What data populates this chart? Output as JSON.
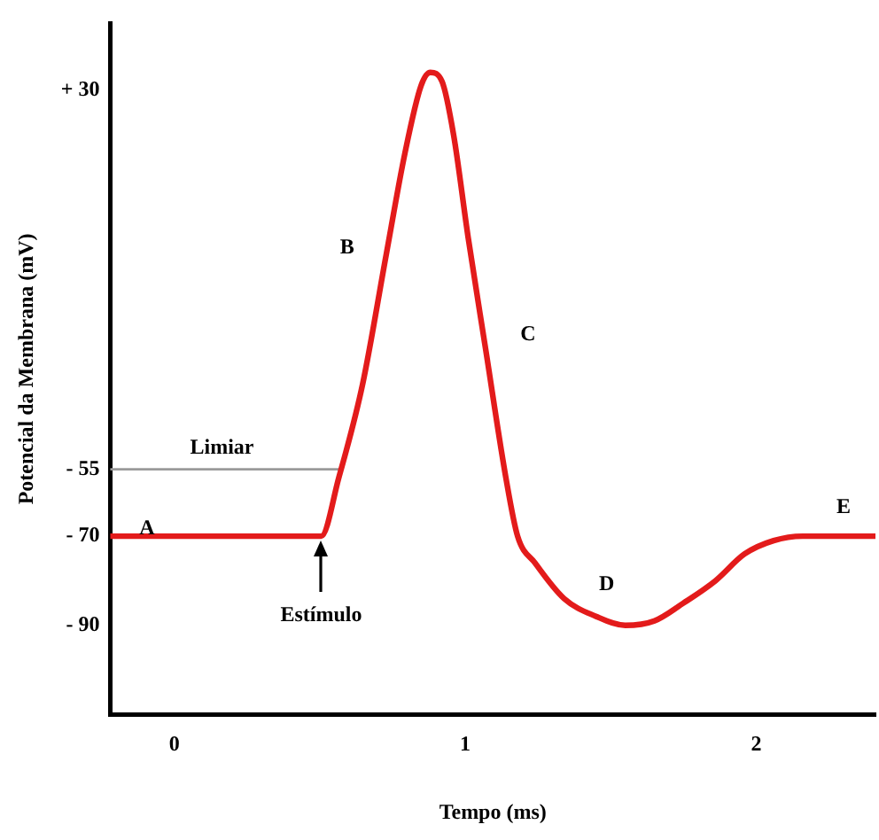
{
  "chart_data": {
    "type": "line",
    "xlabel": "Tempo (ms)",
    "ylabel": "Potencial da Membrana (mV)",
    "x": [
      -0.22,
      0.505,
      0.565,
      0.647,
      0.728,
      0.793,
      0.848,
      0.88,
      0.92,
      0.96,
      1.01,
      1.07,
      1.14,
      1.18,
      1.24,
      1.34,
      1.45,
      1.55,
      1.65,
      1.75,
      1.86,
      1.96,
      2.06,
      2.16,
      2.41
    ],
    "series": [
      {
        "color": "#e31b1b",
        "values": [
          -70,
          -70,
          -57,
          -36,
          -7,
          16,
          31,
          34,
          32,
          20,
          -3,
          -28,
          -57,
          -70,
          -76,
          -84,
          -88,
          -90,
          -89,
          -85,
          -80,
          -74,
          -71,
          -70,
          -70
        ]
      }
    ],
    "xlim": [
      -0.22,
      2.41
    ],
    "xticks": [
      0,
      1,
      2
    ],
    "ylim": [
      -110,
      45
    ],
    "yticks": [
      {
        "value": 30,
        "label": "+ 30"
      },
      {
        "value": -55,
        "label": "- 55"
      },
      {
        "value": -70,
        "label": "- 70"
      },
      {
        "value": -90,
        "label": "- 90"
      }
    ],
    "ref_lines": [
      {
        "axis": "y",
        "value": -55,
        "label": "Limiar",
        "color": "#9a9a9a"
      }
    ],
    "annotations": [
      {
        "text": "A",
        "x": 0.04,
        "y": -70
      },
      {
        "text": "B",
        "x": 0.728,
        "y": -7
      },
      {
        "text": "C",
        "x": 1.07,
        "y": -28
      },
      {
        "text": "D",
        "x": 1.34,
        "y": -84
      },
      {
        "text": "E",
        "x": 2.3,
        "y": -70
      },
      {
        "text": "Estímulo",
        "x": 0.505,
        "y": -70
      }
    ],
    "grid": false,
    "legend": false,
    "marker": "none",
    "line_style": "solid"
  }
}
